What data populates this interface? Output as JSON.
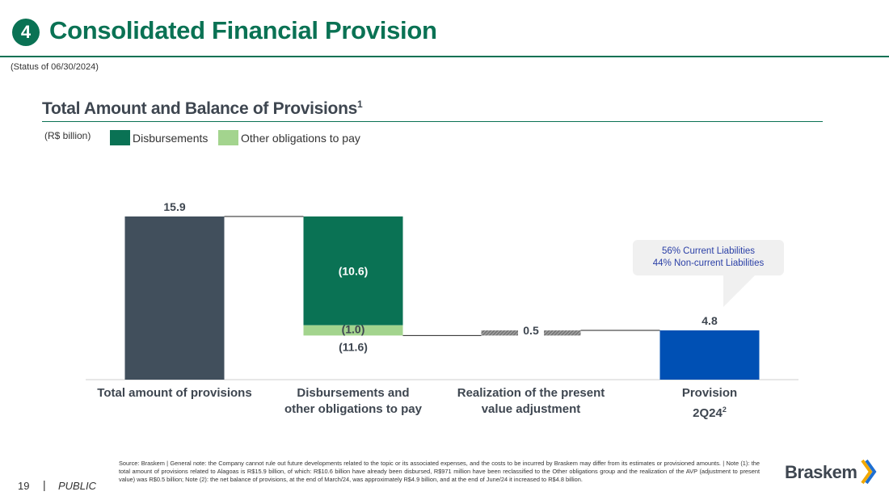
{
  "header": {
    "section_number": "4",
    "title": "Consolidated Financial Provision",
    "status": "(Status of 06/30/2024)"
  },
  "chart_header": {
    "title": "Total Amount and Balance of Provisions",
    "title_sup": "1",
    "unit": "(R$ billion)"
  },
  "colors": {
    "brand_green": "#0a7254",
    "disbursements": "#0a7254",
    "other_obligations": "#a3d48e",
    "total": "#414f5c",
    "provision": "#0050b4"
  },
  "legend": [
    {
      "label": "Disbursements",
      "color": "#0a7254"
    },
    {
      "label": "Other obligations to pay",
      "color": "#a3d48e"
    }
  ],
  "chart_data": {
    "type": "waterfall",
    "title": "Total Amount and Balance of Provisions",
    "unit": "R$ billion",
    "ylim": [
      0,
      16
    ],
    "categories": [
      "Total amount of provisions",
      "Disbursements and other obligations to pay",
      "Realization of the present value adjustment",
      "Provision 2Q24"
    ],
    "category_lines": [
      [
        "Total amount of provisions"
      ],
      [
        "Disbursements and",
        "other obligations to pay"
      ],
      [
        "Realization of the present",
        "value adjustment"
      ],
      [
        "Provision",
        "2Q24",
        "2"
      ]
    ],
    "steps": [
      {
        "name": "Total amount of provisions",
        "kind": "total",
        "value": 15.9,
        "label": "15.9"
      },
      {
        "name": "Disbursements and other obligations to pay",
        "kind": "decrease",
        "value": -11.6,
        "label": "(11.6)",
        "components": [
          {
            "name": "Disbursements",
            "value": -10.6,
            "label": "(10.6)"
          },
          {
            "name": "Other obligations to pay",
            "value": -1.0,
            "label": "(1.0)"
          }
        ]
      },
      {
        "name": "Realization of the present value adjustment",
        "kind": "increase",
        "value": 0.5,
        "label": "0.5"
      },
      {
        "name": "Provision 2Q24",
        "kind": "total",
        "value": 4.8,
        "label": "4.8"
      }
    ],
    "annotation": [
      "56% Current Liabilities",
      "44% Non-current Liabilities"
    ]
  },
  "footer": {
    "page_number": "19",
    "separator": "|",
    "classification": "PUBLIC",
    "footnote": "Source: Braskem | General note: the Company cannot rule out future developments related to the topic or its associated expenses, and the costs to be incurred by Braskem may differ from its estimates or provisioned amounts. | Note (1): the total amount of provisions related to Alagoas is R$15.9 billion, of which: R$10.6 billion have already been disbursed, R$971 million have been reclassified to the Other obligations group and the realization of the AVP (adjustment to present value) was R$0.5 billion; Note (2): the net balance of provisions, at the end of March/24, was approximately R$4.9 billion, and at the end of June/24 it increased to R$4.8 billion.",
    "brand": "Braskem"
  }
}
